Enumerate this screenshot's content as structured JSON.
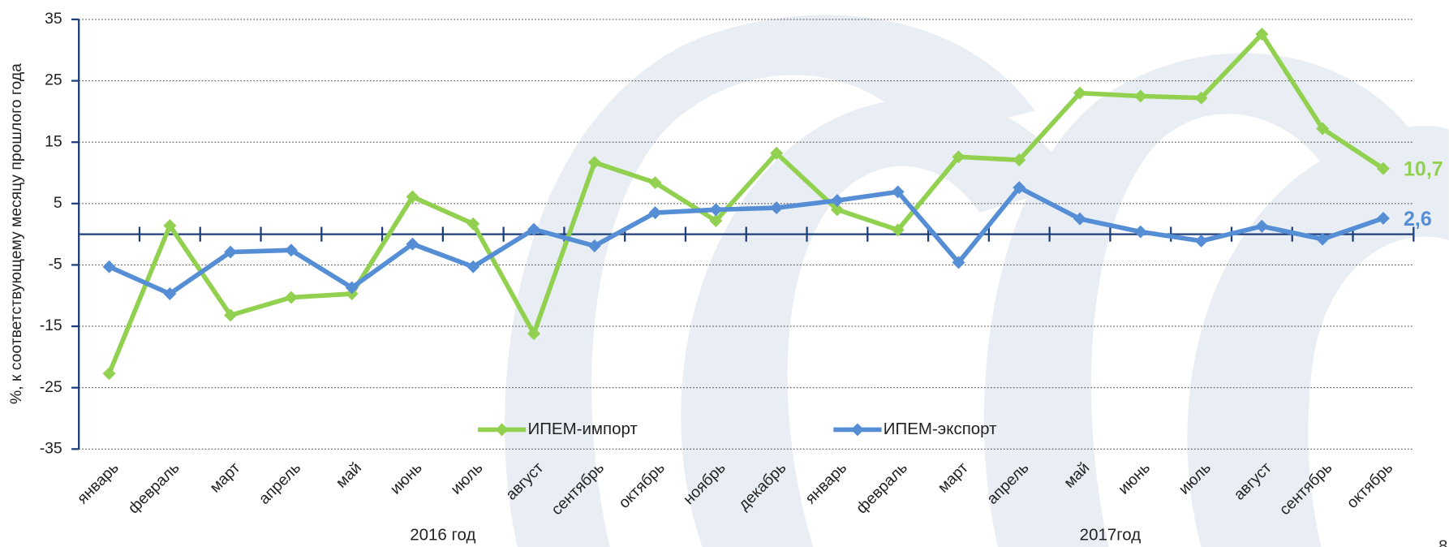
{
  "chart_data": {
    "type": "line",
    "y_label": "%, к соответствующему месяцу прошлого года",
    "categories": [
      "январь",
      "февраль",
      "март",
      "апрель",
      "май",
      "июнь",
      "июль",
      "август",
      "сентябрь",
      "октябрь",
      "ноябрь",
      "декабрь",
      "январь",
      "февраль",
      "март",
      "апрель",
      "май",
      "июнь",
      "июль",
      "август",
      "сентябрь",
      "октябрь"
    ],
    "year_groups": [
      {
        "label": "2016 год",
        "start": 0,
        "end": 11
      },
      {
        "label": "2017год",
        "start": 12,
        "end": 21
      }
    ],
    "series": [
      {
        "name": "ИПЕМ-импорт",
        "color": "#92d050",
        "values": [
          -22.7,
          1.4,
          -13.2,
          -10.3,
          -9.7,
          6.1,
          1.7,
          -16.2,
          11.7,
          8.4,
          2.2,
          13.2,
          4.0,
          0.7,
          12.6,
          12.1,
          23.0,
          22.5,
          22.2,
          32.6,
          17.2,
          10.7
        ],
        "value_labels": [
          null,
          null,
          null,
          null,
          null,
          null,
          null,
          null,
          null,
          null,
          null,
          null,
          null,
          null,
          null,
          null,
          null,
          null,
          null,
          null,
          null,
          "10,7"
        ]
      },
      {
        "name": "ИПЕМ-экспорт",
        "color": "#558ed5",
        "values": [
          -5.3,
          -9.7,
          -2.9,
          -2.6,
          -8.7,
          -1.6,
          -5.3,
          0.8,
          -1.9,
          3.5,
          4.0,
          4.3,
          5.5,
          6.9,
          -4.6,
          7.6,
          2.5,
          0.4,
          -1.1,
          1.3,
          -0.8,
          2.6
        ],
        "value_labels": [
          null,
          null,
          null,
          null,
          null,
          null,
          null,
          null,
          null,
          null,
          null,
          null,
          null,
          null,
          null,
          null,
          null,
          null,
          null,
          null,
          null,
          "2,6"
        ]
      }
    ],
    "ylim": [
      -35,
      35
    ],
    "yticks": [
      -35,
      -25,
      -15,
      -5,
      5,
      15,
      25,
      35
    ],
    "grid": true
  },
  "page_number": "8"
}
